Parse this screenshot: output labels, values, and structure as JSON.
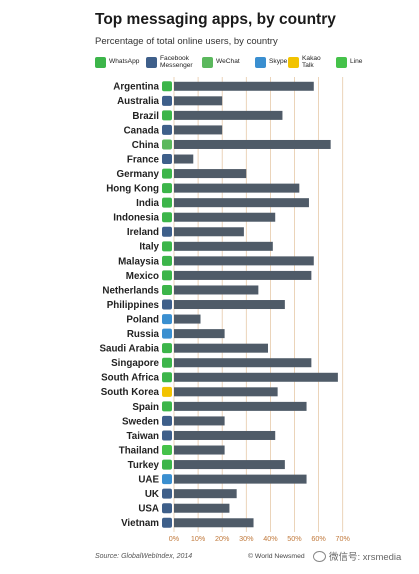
{
  "title": "Top messaging apps, by country",
  "subtitle": "Percentage of total online users, by country",
  "legend": [
    {
      "label": "WhatsApp",
      "color": "#3cb54a",
      "icon": "whatsapp-icon"
    },
    {
      "label": "Facebook\nMessenger",
      "color": "#3e5f8a",
      "icon": "messenger-icon"
    },
    {
      "label": "WeChat",
      "color": "#5bb85d",
      "icon": "wechat-icon"
    },
    {
      "label": "Skype",
      "color": "#3a8fd0",
      "icon": "skype-icon"
    },
    {
      "label": "Kakao\nTalk",
      "color": "#f2c300",
      "icon": "kakaotalk-icon"
    },
    {
      "label": "Line",
      "color": "#45c24a",
      "icon": "line-icon"
    }
  ],
  "chart_data": {
    "type": "bar",
    "orientation": "horizontal",
    "xlim": [
      0,
      70
    ],
    "xticks": [
      "0%",
      "10%",
      "20%",
      "30%",
      "40%",
      "50%",
      "60%",
      "70%"
    ],
    "grid": true,
    "bar_color": "#4f5b68",
    "categories": [
      "Argentina",
      "Australia",
      "Brazil",
      "Canada",
      "China",
      "France",
      "Germany",
      "Hong Kong",
      "India",
      "Indonesia",
      "Ireland",
      "Italy",
      "Malaysia",
      "Mexico",
      "Netherlands",
      "Philippines",
      "Poland",
      "Russia",
      "Saudi Arabia",
      "Singapore",
      "South Africa",
      "South Korea",
      "Spain",
      "Sweden",
      "Taiwan",
      "Thailand",
      "Turkey",
      "UAE",
      "UK",
      "USA",
      "Vietnam"
    ],
    "values": [
      58,
      20,
      45,
      20,
      65,
      8,
      30,
      52,
      56,
      42,
      29,
      41,
      58,
      57,
      35,
      46,
      11,
      21,
      39,
      57,
      68,
      43,
      55,
      21,
      42,
      21,
      46,
      55,
      26,
      23,
      33
    ],
    "leading_app": [
      "whatsapp-icon",
      "messenger-icon",
      "whatsapp-icon",
      "messenger-icon",
      "wechat-icon",
      "messenger-icon",
      "whatsapp-icon",
      "whatsapp-icon",
      "whatsapp-icon",
      "whatsapp-icon",
      "messenger-icon",
      "whatsapp-icon",
      "whatsapp-icon",
      "whatsapp-icon",
      "whatsapp-icon",
      "messenger-icon",
      "skype-icon",
      "skype-icon",
      "whatsapp-icon",
      "whatsapp-icon",
      "whatsapp-icon",
      "kakaotalk-icon",
      "whatsapp-icon",
      "messenger-icon",
      "messenger-icon",
      "line-icon",
      "whatsapp-icon",
      "skype-icon",
      "messenger-icon",
      "messenger-icon",
      "messenger-icon"
    ]
  },
  "footer": {
    "source": "Source: GlobalWebIndex, 2014",
    "credit": "© World Newsmed",
    "watermark": "微信号: xrsmedia"
  }
}
